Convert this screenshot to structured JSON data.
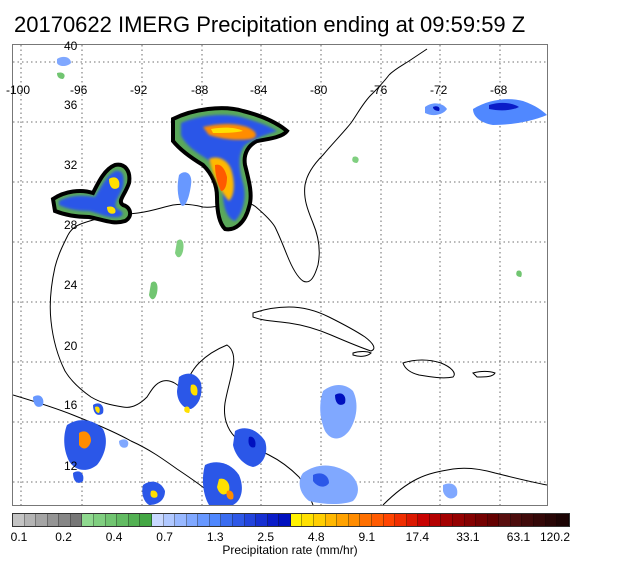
{
  "title": "20170622 IMERG Precipitation ending at 09:59:59 Z",
  "map": {
    "lat_labels": [
      "40",
      "36",
      "32",
      "28",
      "24",
      "20",
      "16",
      "12"
    ],
    "lon_labels": [
      "-100",
      "-96",
      "-92",
      "-88",
      "-84",
      "-80",
      "-76",
      "-72",
      "-68"
    ]
  },
  "colorbar": {
    "label": "Precipitation rate (mm/hr)",
    "tick_labels": [
      "0.1",
      "0.2",
      "0.4",
      "0.7",
      "1.3",
      "2.5",
      "4.8",
      "9.1",
      "17.4",
      "33.1",
      "63.1",
      "120.2"
    ],
    "colors": [
      "#c4c4c4",
      "#b4b4b4",
      "#a5a5a5",
      "#959595",
      "#868686",
      "#777777",
      "#8fd98f",
      "#80cf80",
      "#71c571",
      "#62bb62",
      "#53b153",
      "#44a744",
      "#c8d8ff",
      "#b0c8ff",
      "#98b8ff",
      "#80a8ff",
      "#6898ff",
      "#5088ff",
      "#3a6cf0",
      "#2e58e6",
      "#2244dc",
      "#1630d2",
      "#0a1cc8",
      "#0010be",
      "#fff200",
      "#ffe000",
      "#ffce00",
      "#ffb800",
      "#ffa200",
      "#ff8c00",
      "#ff7000",
      "#ff5a00",
      "#ff4400",
      "#f02e00",
      "#dc1800",
      "#c80200",
      "#b40000",
      "#a40000",
      "#940000",
      "#840000",
      "#740000",
      "#640000",
      "#580e0e",
      "#4c0c0c",
      "#400a0a",
      "#340808",
      "#280606",
      "#1c0404"
    ]
  }
}
